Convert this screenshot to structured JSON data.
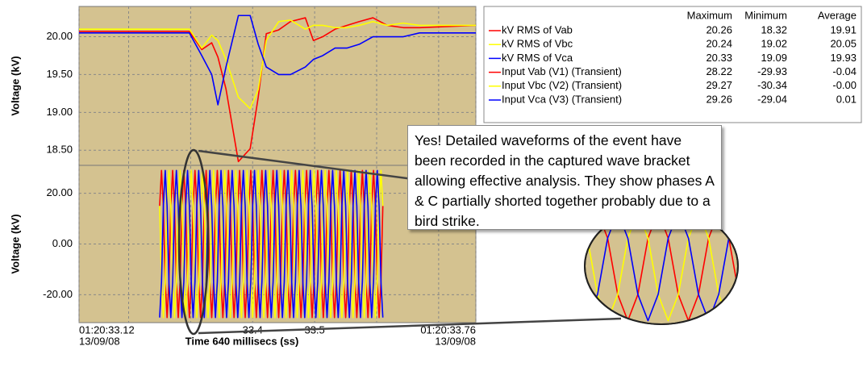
{
  "chart_data": [
    {
      "type": "line",
      "y_label": "Voltage (kV)",
      "xlim": [
        33.12,
        33.76
      ],
      "ylim": [
        18.3,
        20.4
      ],
      "yticks": [
        {
          "value": 18.5,
          "label": "18.50"
        },
        {
          "value": 19,
          "label": "19.00"
        },
        {
          "value": 19.5,
          "label": "19.50"
        },
        {
          "value": 20,
          "label": "20.00"
        }
      ],
      "grid": true,
      "x": [
        33.12,
        33.298,
        33.318,
        33.334,
        33.344,
        33.357,
        33.377,
        33.396,
        33.409,
        33.422,
        33.442,
        33.461,
        33.485,
        33.498,
        33.513,
        33.533,
        33.552,
        33.572,
        33.594,
        33.617,
        33.643,
        33.669,
        33.76
      ],
      "series": [
        {
          "name": "kV RMS of Vab",
          "color": "#ff0000",
          "values": [
            20.07,
            20.07,
            19.83,
            19.92,
            19.73,
            19.31,
            18.35,
            18.52,
            19.2,
            20.04,
            20.09,
            20.2,
            20.25,
            19.95,
            20.0,
            20.1,
            20.15,
            20.2,
            20.25,
            20.15,
            20.12,
            20.12,
            20.15
          ]
        },
        {
          "name": "kV RMS of Vbc",
          "color": "#ffff00",
          "values": [
            20.1,
            20.1,
            19.85,
            20.02,
            19.95,
            19.7,
            19.2,
            19.05,
            19.3,
            19.95,
            20.2,
            20.22,
            20.1,
            20.15,
            20.15,
            20.12,
            20.12,
            20.15,
            20.2,
            20.15,
            20.18,
            20.15,
            20.15
          ]
        },
        {
          "name": "kV RMS of Vca",
          "color": "#0000ff",
          "values": [
            20.05,
            20.05,
            19.75,
            19.5,
            19.1,
            19.6,
            20.28,
            20.28,
            19.9,
            19.6,
            19.5,
            19.5,
            19.6,
            19.7,
            19.75,
            19.85,
            19.85,
            19.9,
            20.0,
            20.0,
            20.0,
            20.05,
            20.05
          ]
        }
      ]
    },
    {
      "type": "line",
      "y_label": "Voltage (kV)",
      "x_label": "Time 640 millisecs (ss)",
      "xlim": [
        33.12,
        33.76
      ],
      "ylim": [
        -31,
        31
      ],
      "yticks": [
        {
          "value": -20,
          "label": "-20.00"
        },
        {
          "value": 0,
          "label": "0.00"
        },
        {
          "value": 20,
          "label": "20.00"
        }
      ],
      "xticks": [
        {
          "value": 33.12,
          "label": "01:20:33.12"
        },
        33.4,
        33.5,
        {
          "value": 33.76,
          "label": "01:20:33.76"
        }
      ],
      "xgrid": [
        33.2,
        33.3,
        33.6,
        33.7
      ],
      "x_tick_date": "13/09/08",
      "grid": true,
      "annotation": "Yes! Detailed waveforms of the event have been recorded in the captured wave bracket allowing effective analysis. They show phases A & C partially shorted together probably due to a bird strike.",
      "x": [
        33.25,
        33.253,
        33.256,
        33.259,
        33.262,
        33.265,
        33.268,
        33.271,
        33.274,
        33.277,
        33.28,
        33.283,
        33.286,
        33.289,
        33.292,
        33.295,
        33.298,
        33.301,
        33.304,
        33.307,
        33.31,
        33.313,
        33.316,
        33.319,
        33.322,
        33.325,
        33.328,
        33.331,
        33.334,
        33.337,
        33.34,
        33.343,
        33.346,
        33.349,
        33.352,
        33.355,
        33.358,
        33.361,
        33.364,
        33.367,
        33.37,
        33.373,
        33.376,
        33.379,
        33.382,
        33.385,
        33.388,
        33.391,
        33.394,
        33.397,
        33.4,
        33.403,
        33.406,
        33.409,
        33.412,
        33.415,
        33.418,
        33.421,
        33.424,
        33.427,
        33.43,
        33.433,
        33.436,
        33.439,
        33.442,
        33.445,
        33.448,
        33.451,
        33.454,
        33.457,
        33.46,
        33.463,
        33.466,
        33.469,
        33.472,
        33.475,
        33.478,
        33.481,
        33.484,
        33.487,
        33.49,
        33.493,
        33.496,
        33.499,
        33.502,
        33.505,
        33.508,
        33.511,
        33.514,
        33.517,
        33.52,
        33.523,
        33.526,
        33.529,
        33.532,
        33.535,
        33.538,
        33.541,
        33.544,
        33.547,
        33.55,
        33.553,
        33.556,
        33.559,
        33.562,
        33.565,
        33.568,
        33.571,
        33.574,
        33.577,
        33.58,
        33.583,
        33.586,
        33.589,
        33.592,
        33.595,
        33.598,
        33.601,
        33.604,
        33.607,
        33.61
      ],
      "series": [
        {
          "name": "Input Vab (V1) (Transient)",
          "color": "#ff0000",
          "values": [
            15,
            29,
            15,
            -15,
            -29,
            -15,
            15,
            29,
            15,
            -15,
            -29,
            -15,
            15,
            29,
            15,
            -15,
            -29,
            -15,
            15,
            29,
            15,
            -15,
            -29,
            -15,
            15,
            29,
            15,
            -15,
            -29,
            -15,
            15,
            29,
            15,
            -15,
            -29,
            -15,
            15,
            29,
            15,
            -15,
            -29,
            -15,
            15,
            29,
            15,
            -15,
            -29,
            -15,
            15,
            29,
            15,
            -15,
            -29,
            -15,
            15,
            29,
            15,
            -15,
            -29,
            -15,
            15,
            29,
            15,
            -15,
            -29,
            -15,
            15,
            29,
            15,
            -15,
            -29,
            -15,
            15,
            29,
            15,
            -15,
            -29,
            -15,
            15,
            29,
            15,
            -15,
            -29,
            -15,
            15,
            29,
            15,
            -15,
            -29,
            -15,
            15,
            29,
            15,
            -15,
            -29,
            -15,
            15,
            29,
            15,
            -15,
            -29,
            -15,
            15,
            29,
            15,
            -15,
            -29,
            -15,
            15,
            29,
            15,
            -15,
            -29,
            -15,
            15,
            29,
            15,
            -15,
            -29,
            -15,
            15
          ]
        },
        {
          "name": "Input Vbc (V2) (Transient)",
          "color": "#ffff00",
          "values": [
            15,
            -15,
            -29,
            -15,
            15,
            29,
            15,
            -15,
            -29,
            -15,
            15,
            29,
            15,
            -15,
            -29,
            -15,
            15,
            29,
            15,
            -15,
            -29,
            -15,
            15,
            29,
            15,
            -15,
            -29,
            -15,
            15,
            29,
            15,
            -15,
            -29,
            -15,
            15,
            29,
            15,
            -15,
            -29,
            -15,
            15,
            29,
            15,
            -15,
            -29,
            -15,
            15,
            29,
            15,
            -15,
            -29,
            -15,
            15,
            29,
            15,
            -15,
            -29,
            -15,
            15,
            29,
            15,
            -15,
            -29,
            -15,
            15,
            29,
            15,
            -15,
            -29,
            -15,
            15,
            29,
            15,
            -15,
            -29,
            -15,
            15,
            29,
            15,
            -15,
            -29,
            -15,
            15,
            29,
            15,
            -15,
            -29,
            -15,
            15,
            29,
            15,
            -15,
            -29,
            -15,
            15,
            29,
            15,
            -15,
            -29,
            -15,
            15,
            29,
            15,
            -15,
            -29,
            -15,
            15,
            29,
            15,
            -15,
            -29,
            -15,
            15,
            29,
            15,
            -15,
            -29,
            -15,
            15,
            29,
            15
          ]
        },
        {
          "name": "Input Vca (V3) (Transient)",
          "color": "#0000ff",
          "values": [
            -29,
            -15,
            15,
            29,
            15,
            -15,
            -29,
            -15,
            15,
            29,
            15,
            -15,
            -29,
            -15,
            15,
            29,
            15,
            -15,
            -29,
            -15,
            15,
            29,
            15,
            -15,
            -29,
            -15,
            15,
            29,
            15,
            -15,
            -29,
            -15,
            15,
            29,
            15,
            -15,
            -29,
            -15,
            15,
            29,
            15,
            -15,
            -29,
            -15,
            15,
            29,
            15,
            -15,
            -29,
            -15,
            15,
            29,
            15,
            -15,
            -29,
            -15,
            15,
            29,
            15,
            -15,
            -29,
            -15,
            15,
            29,
            15,
            -15,
            -29,
            -15,
            15,
            29,
            15,
            -15,
            -29,
            -15,
            15,
            29,
            15,
            -15,
            -29,
            -15,
            15,
            29,
            15,
            -15,
            -29,
            -15,
            15,
            29,
            15,
            -15,
            -29,
            -15,
            15,
            29,
            15,
            -15,
            -29,
            -15,
            15,
            29,
            15,
            -15,
            -29,
            -15,
            15,
            29,
            15,
            -15,
            -29,
            -15,
            15,
            29,
            15,
            -15,
            -29,
            -15,
            15,
            29,
            15,
            -15,
            -29
          ]
        }
      ]
    }
  ],
  "legend_table": {
    "columns": [
      "Maximum",
      "Minimum",
      "Average"
    ],
    "rows": [
      [
        "20.26",
        "18.32",
        "19.91"
      ],
      [
        "20.24",
        "19.02",
        "20.05"
      ],
      [
        "20.33",
        "19.09",
        "19.93"
      ],
      [
        "28.22",
        "-29.93",
        "-0.04"
      ],
      [
        "29.27",
        "-30.34",
        "-0.00"
      ],
      [
        "29.26",
        "-29.04",
        "0.01"
      ]
    ]
  }
}
